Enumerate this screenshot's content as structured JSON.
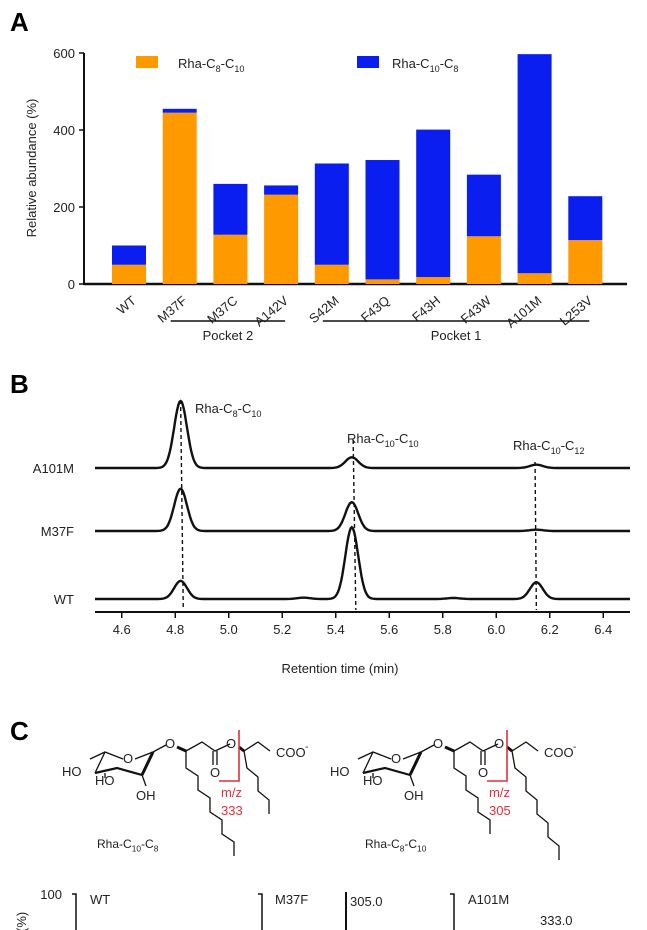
{
  "panels": {
    "a": "A",
    "b": "B",
    "c": "C"
  },
  "colors": {
    "orange": "#ff9900",
    "blue": "#0a1ef0",
    "red": "#e0303a",
    "black": "#111111"
  },
  "chart_data": [
    {
      "type": "bar",
      "stacked": true,
      "ylabel": "Relative abundance (%)",
      "ylim": [
        0,
        600
      ],
      "yticks": [
        "0",
        "200",
        "400",
        "600"
      ],
      "categories": [
        "WT",
        "M37F",
        "M37C",
        "A142V",
        "S42M",
        "F43Q",
        "F43H",
        "F43W",
        "A101M",
        "L253V"
      ],
      "series": [
        {
          "name": {
            "base": "Rha-C",
            "s1": "8",
            "mid": "-C",
            "s2": "10"
          },
          "color": "#ff9900",
          "values": [
            50,
            445,
            128,
            232,
            50,
            12,
            18,
            124,
            28,
            114
          ]
        },
        {
          "name": {
            "base": "Rha-C",
            "s1": "10",
            "mid": "-C",
            "s2": "8"
          },
          "color": "#0a1ef0",
          "values": [
            50,
            10,
            132,
            24,
            263,
            310,
            383,
            160,
            569,
            114
          ]
        }
      ],
      "legend": "top",
      "groups": [
        {
          "label": "Pocket 2",
          "from": "M37F",
          "to": "A142V"
        },
        {
          "label": "Pocket 1",
          "from": "S42M",
          "to": "L253V"
        }
      ]
    },
    {
      "type": "line",
      "xlabel": "Retention time (min)",
      "xlim": [
        4.5,
        6.5
      ],
      "xticks": [
        "4.6",
        "4.8",
        "5.0",
        "5.2",
        "5.4",
        "5.6",
        "5.8",
        "6.0",
        "6.2",
        "6.4"
      ],
      "traces": [
        {
          "name": "A101M",
          "peaks": [
            {
              "rt": 4.82,
              "height": 1.0
            },
            {
              "rt": 5.46,
              "height": 0.16
            },
            {
              "rt": 6.15,
              "height": 0.05
            }
          ]
        },
        {
          "name": "M37F",
          "peaks": [
            {
              "rt": 4.82,
              "height": 0.63
            },
            {
              "rt": 5.46,
              "height": 0.43
            },
            {
              "rt": 6.15,
              "height": 0.02
            }
          ]
        },
        {
          "name": "WT",
          "peaks": [
            {
              "rt": 4.82,
              "height": 0.27
            },
            {
              "rt": 5.46,
              "height": 1.07
            },
            {
              "rt": 6.15,
              "height": 0.25
            },
            {
              "rt": 5.28,
              "height": 0.02
            },
            {
              "rt": 5.84,
              "height": 0.015
            }
          ]
        }
      ],
      "peak_labels": [
        {
          "rt": 4.82,
          "text": {
            "base": "Rha-C",
            "s1": "8",
            "mid": "-C",
            "s2": "10"
          }
        },
        {
          "rt": 5.47,
          "text": {
            "base": "Rha-C",
            "s1": "10",
            "mid": "-C",
            "s2": "10"
          }
        },
        {
          "rt": 6.15,
          "text": {
            "base": "Rha-C",
            "s1": "10",
            "mid": "-C",
            "s2": "12"
          }
        }
      ]
    }
  ],
  "structures": [
    {
      "name": {
        "base": "Rha-C",
        "s1": "10",
        "mid": "-C",
        "s2": "8"
      },
      "mz_label": "m/z",
      "mz": "333",
      "atoms": {
        "ho1": "HO",
        "ho2": "HO",
        "oh": "OH",
        "o_ring": "O",
        "o_gly": "O",
        "o_carb": "O",
        "o_ester": "O",
        "coo": "COO",
        "charge": "-"
      }
    },
    {
      "name": {
        "base": "Rha-C",
        "s1": "8",
        "mid": "-C",
        "s2": "10"
      },
      "mz_label": "m/z",
      "mz": "305",
      "atoms": {
        "ho1": "HO",
        "ho2": "HO",
        "oh": "OH",
        "o_ring": "O",
        "o_gly": "O",
        "o_carb": "O",
        "o_ester": "O",
        "coo": "COO",
        "charge": "-"
      }
    }
  ],
  "spectra": {
    "ytick_top": "100",
    "ylabel_fragment": "(%)",
    "panels": [
      "WT",
      "M37F",
      "A101M"
    ],
    "peak_labels": [
      "305.0",
      "333.0"
    ]
  }
}
